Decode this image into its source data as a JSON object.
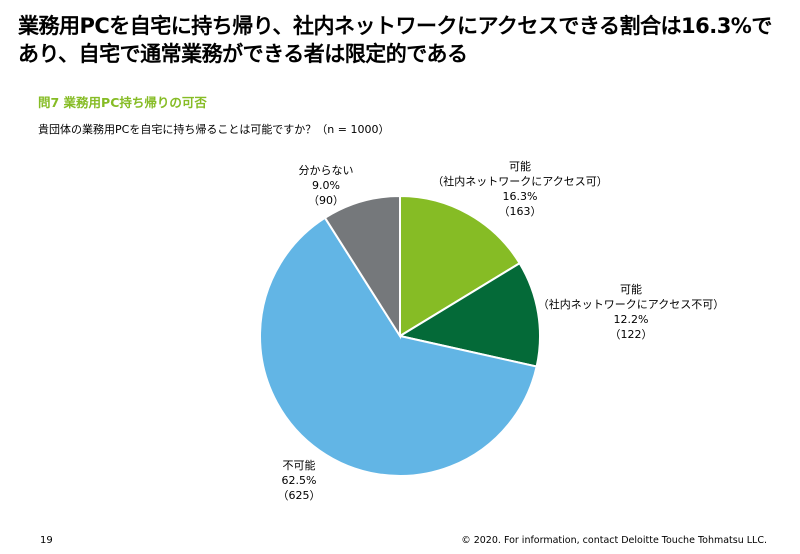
{
  "header": {
    "title": "業務用PCを自宅に持ち帰り、社内ネットワークにアクセスできる割合は16.3%であり、自宅で通常業務ができる者は限定的である",
    "subtitle": "問7 業務用PC持ち帰りの可否",
    "question": "貴団体の業務用PCを自宅に持ち帰ることは可能ですか？（n = 1000）"
  },
  "chart_data": {
    "type": "pie",
    "title": "問7 業務用PC持ち帰りの可否",
    "n": 1000,
    "slices": [
      {
        "label": "可能",
        "sublabel": "（社内ネットワークにアクセス可）",
        "percent": 16.3,
        "percent_text": "16.3%",
        "count": 163,
        "count_text": "（163）",
        "color": "#86BC25"
      },
      {
        "label": "可能",
        "sublabel": "（社内ネットワークにアクセス不可）",
        "percent": 12.2,
        "percent_text": "12.2%",
        "count": 122,
        "count_text": "（122）",
        "color": "#046A38"
      },
      {
        "label": "不可能",
        "sublabel": "",
        "percent": 62.5,
        "percent_text": "62.5%",
        "count": 625,
        "count_text": "（625）",
        "color": "#62B5E5"
      },
      {
        "label": "分からない",
        "sublabel": "",
        "percent": 9.0,
        "percent_text": "9.0%",
        "count": 90,
        "count_text": "（90）",
        "color": "#75787B"
      }
    ]
  },
  "footer": {
    "page_number": "19",
    "copyright": "© 2020. For information, contact Deloitte Touche Tohmatsu LLC."
  }
}
